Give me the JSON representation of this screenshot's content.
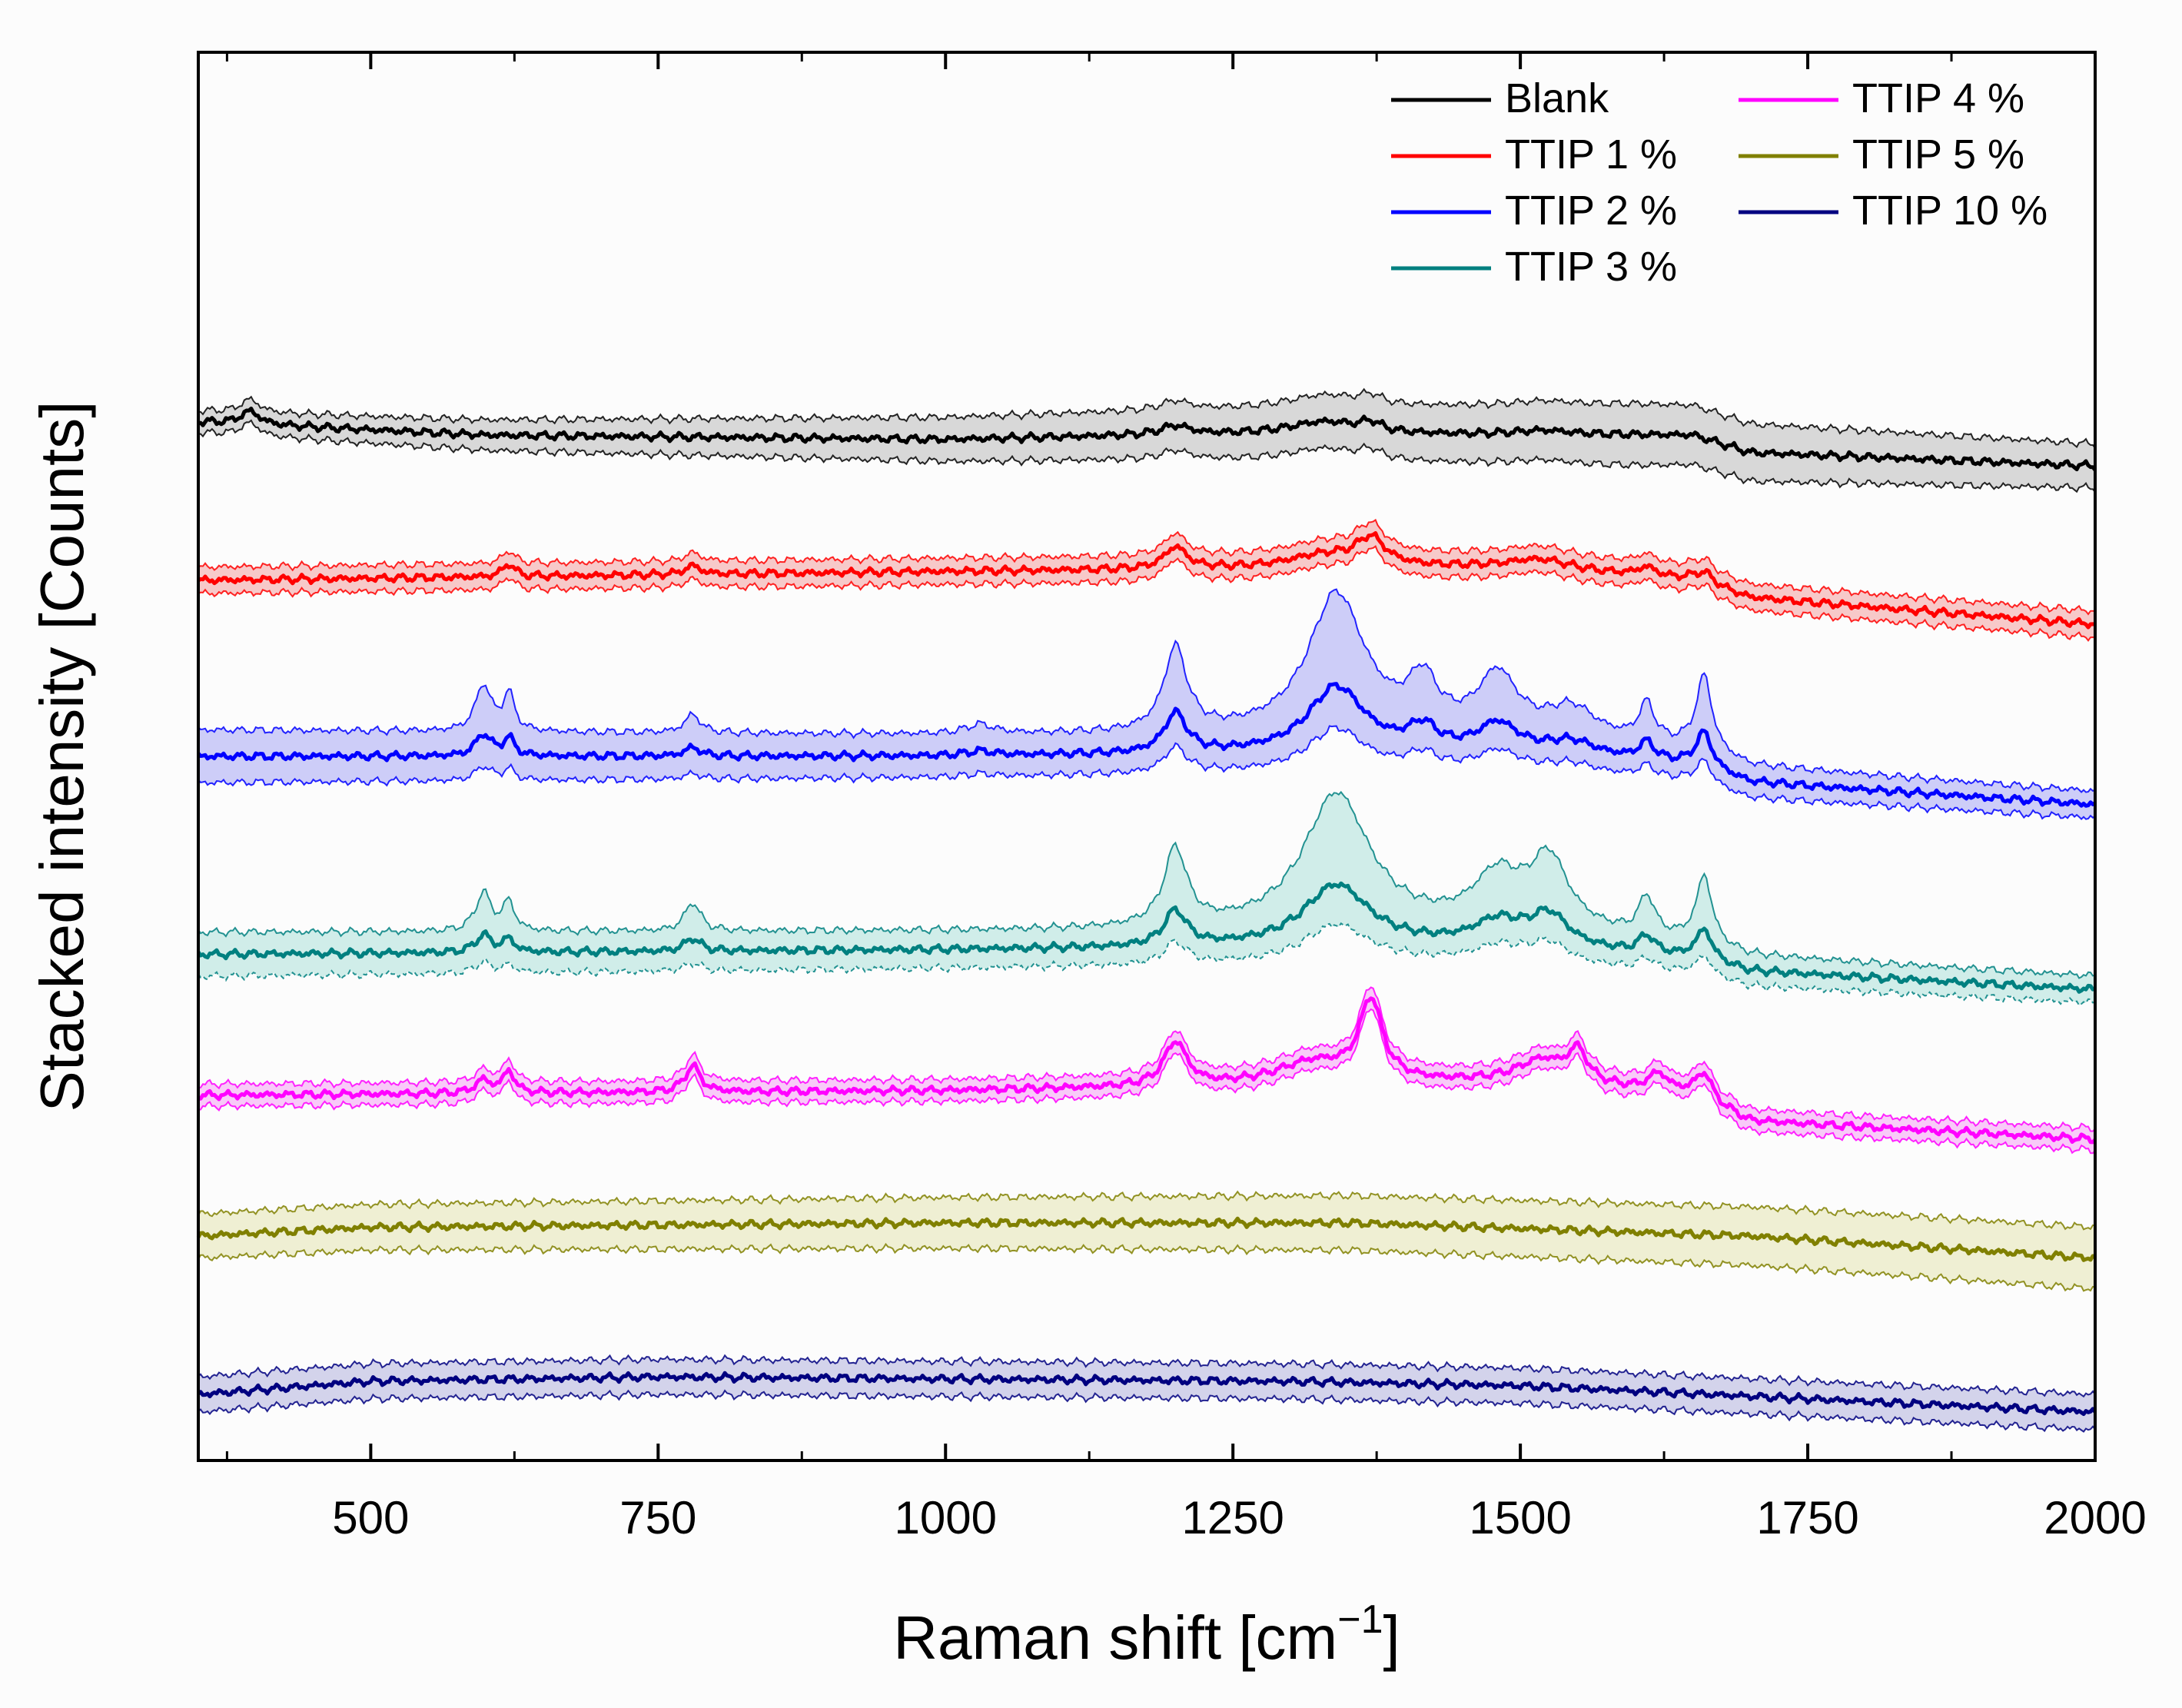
{
  "chart_data": {
    "type": "line",
    "title": "",
    "xlabel": "Raman shift [cm",
    "xlabel_superscript": "−1",
    "xlabel_suffix": "]",
    "ylabel": "Stacked intensity [Counts]",
    "xlim": [
      350,
      2000
    ],
    "ylim": [
      -1,
      31
    ],
    "xticks": [
      500,
      750,
      1000,
      1250,
      1500,
      1750,
      2000
    ],
    "xtick_labels": [
      "500",
      "750",
      "1000",
      "1250",
      "1500",
      "1750",
      "2000"
    ],
    "y_ticks_shown": false,
    "grid": false,
    "band": "shaded ± deviation envelope around each mean spectrum",
    "legend": {
      "position": "top-right",
      "columns": 2
    },
    "series": [
      {
        "name": "Blank",
        "color": "#000000",
        "fill": "#bfbfbf",
        "baseline": {
          "x": [
            350,
            600,
            1000,
            1200,
            1650,
            1700,
            2000
          ],
          "y": [
            22.6,
            22.3,
            22.2,
            22.3,
            22.3,
            21.9,
            21.6
          ]
        },
        "peaks": [
          {
            "x": 395,
            "h": 0.3,
            "w": 10
          },
          {
            "x": 1200,
            "h": 0.2,
            "w": 15
          },
          {
            "x": 1330,
            "h": 0.3,
            "w": 40
          },
          {
            "x": 1370,
            "h": 0.2,
            "w": 10
          },
          {
            "x": 1520,
            "h": 0.1,
            "w": 30
          }
        ],
        "band_width": [
          {
            "x": 350,
            "v": 0.25
          },
          {
            "x": 1000,
            "v": 0.5
          },
          {
            "x": 1600,
            "v": 0.7
          },
          {
            "x": 2000,
            "v": 0.5
          }
        ]
      },
      {
        "name": "TTIP 1 %",
        "color": "#ff0000",
        "fill": "#f4a6a6",
        "baseline": {
          "x": [
            350,
            1000,
            1500,
            1650,
            1700,
            2000
          ],
          "y": [
            19.0,
            19.2,
            19.3,
            19.0,
            18.6,
            18.0
          ]
        },
        "peaks": [
          {
            "x": 620,
            "h": 0.3,
            "w": 6
          },
          {
            "x": 780,
            "h": 0.2,
            "w": 8
          },
          {
            "x": 1200,
            "h": 0.5,
            "w": 12
          },
          {
            "x": 1330,
            "h": 0.3,
            "w": 40
          },
          {
            "x": 1370,
            "h": 0.6,
            "w": 15
          },
          {
            "x": 1520,
            "h": 0.2,
            "w": 30
          },
          {
            "x": 1610,
            "h": 0.2,
            "w": 10
          },
          {
            "x": 1660,
            "h": 0.25,
            "w": 10
          }
        ],
        "band_width": [
          {
            "x": 350,
            "v": 0.3
          },
          {
            "x": 2000,
            "v": 0.3
          }
        ]
      },
      {
        "name": "TTIP 2 %",
        "color": "#0000ff",
        "fill": "#aeaef5",
        "baseline": {
          "x": [
            350,
            1000,
            1500,
            1650,
            1700,
            2000
          ],
          "y": [
            15.0,
            15.0,
            15.1,
            14.8,
            14.4,
            13.9
          ]
        },
        "peaks": [
          {
            "x": 598,
            "h": 0.5,
            "w": 8
          },
          {
            "x": 620,
            "h": 0.4,
            "w": 6
          },
          {
            "x": 780,
            "h": 0.2,
            "w": 8
          },
          {
            "x": 1030,
            "h": 0.1,
            "w": 15
          },
          {
            "x": 1200,
            "h": 0.9,
            "w": 12
          },
          {
            "x": 1340,
            "h": 1.5,
            "w": 30
          },
          {
            "x": 1415,
            "h": 0.5,
            "w": 15
          },
          {
            "x": 1480,
            "h": 0.6,
            "w": 20
          },
          {
            "x": 1545,
            "h": 0.3,
            "w": 25
          },
          {
            "x": 1610,
            "h": 0.4,
            "w": 8
          },
          {
            "x": 1660,
            "h": 0.8,
            "w": 8
          }
        ],
        "band_width": [
          {
            "x": 350,
            "v": 0.6
          },
          {
            "x": 2000,
            "v": 0.3
          }
        ],
        "band_scale": 1.4
      },
      {
        "name": "TTIP 3 %",
        "color": "#008080",
        "fill": "#b3e3dc",
        "baseline": {
          "x": [
            350,
            1000,
            1500,
            1650,
            1700,
            2000
          ],
          "y": [
            10.5,
            10.6,
            10.7,
            10.4,
            10.1,
            9.7
          ]
        },
        "peaks": [
          {
            "x": 598,
            "h": 0.4,
            "w": 8
          },
          {
            "x": 620,
            "h": 0.3,
            "w": 6
          },
          {
            "x": 780,
            "h": 0.3,
            "w": 8
          },
          {
            "x": 1200,
            "h": 0.8,
            "w": 12
          },
          {
            "x": 1340,
            "h": 1.4,
            "w": 35
          },
          {
            "x": 1480,
            "h": 0.5,
            "w": 25
          },
          {
            "x": 1525,
            "h": 0.7,
            "w": 20
          },
          {
            "x": 1610,
            "h": 0.4,
            "w": 8
          },
          {
            "x": 1660,
            "h": 0.7,
            "w": 8
          }
        ],
        "band_width": [
          {
            "x": 350,
            "v": 0.5
          },
          {
            "x": 2000,
            "v": 0.3
          }
        ],
        "band_scale": 1.5
      },
      {
        "name": "TTIP 4 %",
        "color": "#ff00ff",
        "fill": "#f5a8f5",
        "baseline": {
          "x": [
            350,
            1000,
            1500,
            1650,
            1700,
            2000
          ],
          "y": [
            7.3,
            7.4,
            7.6,
            7.3,
            6.7,
            6.3
          ]
        },
        "peaks": [
          {
            "x": 598,
            "h": 0.3,
            "w": 8
          },
          {
            "x": 620,
            "h": 0.5,
            "w": 6
          },
          {
            "x": 780,
            "h": 0.6,
            "w": 8
          },
          {
            "x": 1200,
            "h": 1.0,
            "w": 12
          },
          {
            "x": 1320,
            "h": 0.5,
            "w": 40
          },
          {
            "x": 1370,
            "h": 1.8,
            "w": 12
          },
          {
            "x": 1520,
            "h": 0.5,
            "w": 25
          },
          {
            "x": 1550,
            "h": 0.7,
            "w": 10
          },
          {
            "x": 1620,
            "h": 0.4,
            "w": 10
          },
          {
            "x": 1660,
            "h": 0.6,
            "w": 8
          }
        ],
        "band_width": [
          {
            "x": 350,
            "v": 0.25
          },
          {
            "x": 2000,
            "v": 0.25
          }
        ]
      },
      {
        "name": "TTIP 5 %",
        "color": "#808000",
        "fill": "#e6e6b8",
        "baseline": {
          "x": [
            350,
            500,
            1000,
            1350,
            1700,
            2000
          ],
          "y": [
            4.1,
            4.3,
            4.4,
            4.4,
            4.1,
            3.6
          ]
        },
        "peaks": [],
        "band_width": [
          {
            "x": 350,
            "v": 0.5
          },
          {
            "x": 2000,
            "v": 0.7
          }
        ]
      },
      {
        "name": "TTIP 10 %",
        "color": "#000080",
        "fill": "#b8b8e0",
        "baseline": {
          "x": [
            350,
            500,
            750,
            1300,
            1500,
            1750,
            2000
          ],
          "y": [
            0.5,
            0.8,
            0.9,
            0.8,
            0.7,
            0.4,
            0.1
          ]
        },
        "peaks": [],
        "band_width": [
          {
            "x": 350,
            "v": 0.4
          },
          {
            "x": 2000,
            "v": 0.4
          }
        ]
      }
    ]
  }
}
